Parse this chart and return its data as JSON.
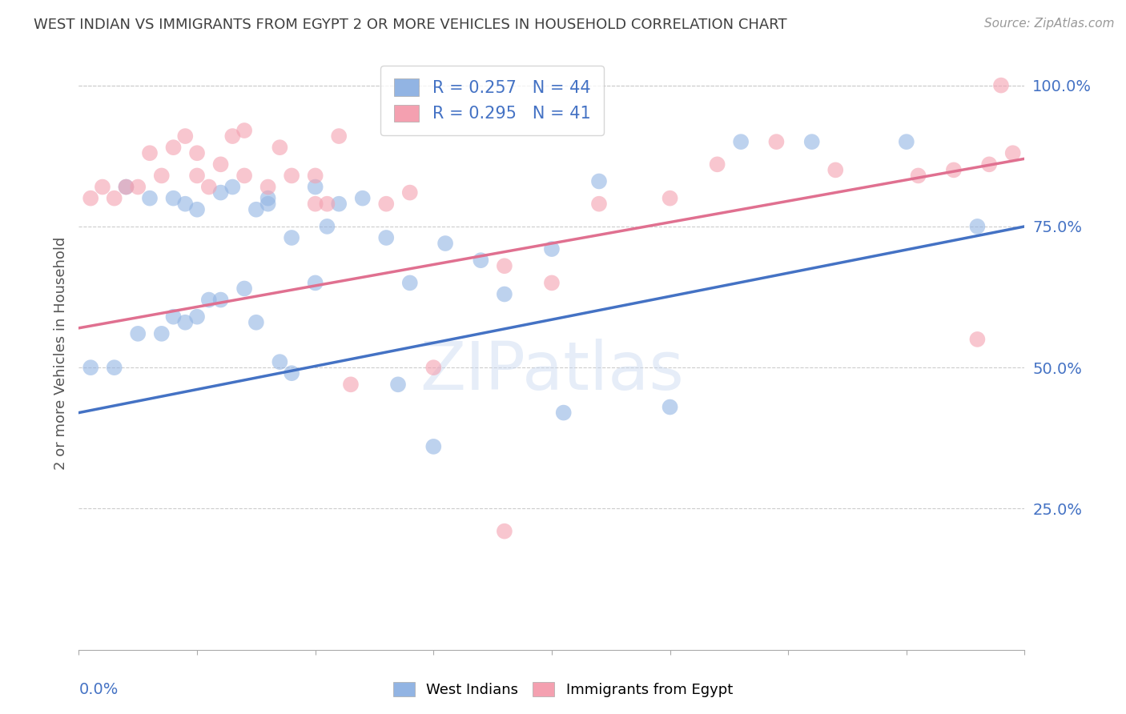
{
  "title": "WEST INDIAN VS IMMIGRANTS FROM EGYPT 2 OR MORE VEHICLES IN HOUSEHOLD CORRELATION CHART",
  "source": "Source: ZipAtlas.com",
  "ylabel": "2 or more Vehicles in Household",
  "ytick_labels": [
    "25.0%",
    "50.0%",
    "75.0%",
    "100.0%"
  ],
  "ytick_values": [
    0.25,
    0.5,
    0.75,
    1.0
  ],
  "xmin": 0.0,
  "xmax": 0.4,
  "ymin": 0.0,
  "ymax": 1.05,
  "legend_r1": "R = 0.257",
  "legend_n1": "N = 44",
  "legend_r2": "R = 0.295",
  "legend_n2": "N = 41",
  "blue_color": "#92b4e3",
  "pink_color": "#f4a0b0",
  "line_blue": "#4472c4",
  "line_pink": "#e07090",
  "title_color": "#404040",
  "axis_label_color": "#555555",
  "tick_color": "#4472c4",
  "watermark": "ZIPatlas",
  "blue_x": [
    0.005,
    0.02,
    0.025,
    0.03,
    0.035,
    0.04,
    0.04,
    0.045,
    0.045,
    0.05,
    0.05,
    0.055,
    0.06,
    0.06,
    0.065,
    0.07,
    0.075,
    0.075,
    0.08,
    0.08,
    0.085,
    0.09,
    0.09,
    0.1,
    0.1,
    0.105,
    0.11,
    0.12,
    0.13,
    0.135,
    0.14,
    0.15,
    0.155,
    0.17,
    0.18,
    0.2,
    0.205,
    0.22,
    0.25,
    0.28,
    0.31,
    0.35,
    0.38,
    0.015
  ],
  "blue_y": [
    0.5,
    0.82,
    0.56,
    0.8,
    0.56,
    0.59,
    0.8,
    0.58,
    0.79,
    0.59,
    0.78,
    0.62,
    0.62,
    0.81,
    0.82,
    0.64,
    0.58,
    0.78,
    0.79,
    0.8,
    0.51,
    0.49,
    0.73,
    0.65,
    0.82,
    0.75,
    0.79,
    0.8,
    0.73,
    0.47,
    0.65,
    0.36,
    0.72,
    0.69,
    0.63,
    0.71,
    0.42,
    0.83,
    0.43,
    0.9,
    0.9,
    0.9,
    0.75,
    0.5
  ],
  "pink_x": [
    0.005,
    0.01,
    0.015,
    0.02,
    0.025,
    0.03,
    0.035,
    0.04,
    0.045,
    0.05,
    0.05,
    0.055,
    0.06,
    0.065,
    0.07,
    0.07,
    0.08,
    0.085,
    0.09,
    0.1,
    0.1,
    0.105,
    0.11,
    0.115,
    0.13,
    0.14,
    0.15,
    0.18,
    0.2,
    0.22,
    0.25,
    0.27,
    0.295,
    0.32,
    0.355,
    0.37,
    0.385,
    0.395,
    0.18,
    0.38,
    0.39
  ],
  "pink_y": [
    0.8,
    0.82,
    0.8,
    0.82,
    0.82,
    0.88,
    0.84,
    0.89,
    0.91,
    0.84,
    0.88,
    0.82,
    0.86,
    0.91,
    0.84,
    0.92,
    0.82,
    0.89,
    0.84,
    0.79,
    0.84,
    0.79,
    0.91,
    0.47,
    0.79,
    0.81,
    0.5,
    0.68,
    0.65,
    0.79,
    0.8,
    0.86,
    0.9,
    0.85,
    0.84,
    0.85,
    0.86,
    0.88,
    0.21,
    0.55,
    1.0
  ],
  "blue_line_x0": 0.0,
  "blue_line_y0": 0.42,
  "blue_line_x1": 0.4,
  "blue_line_y1": 0.75,
  "pink_line_x0": 0.0,
  "pink_line_y0": 0.57,
  "pink_line_x1": 0.4,
  "pink_line_y1": 0.87
}
